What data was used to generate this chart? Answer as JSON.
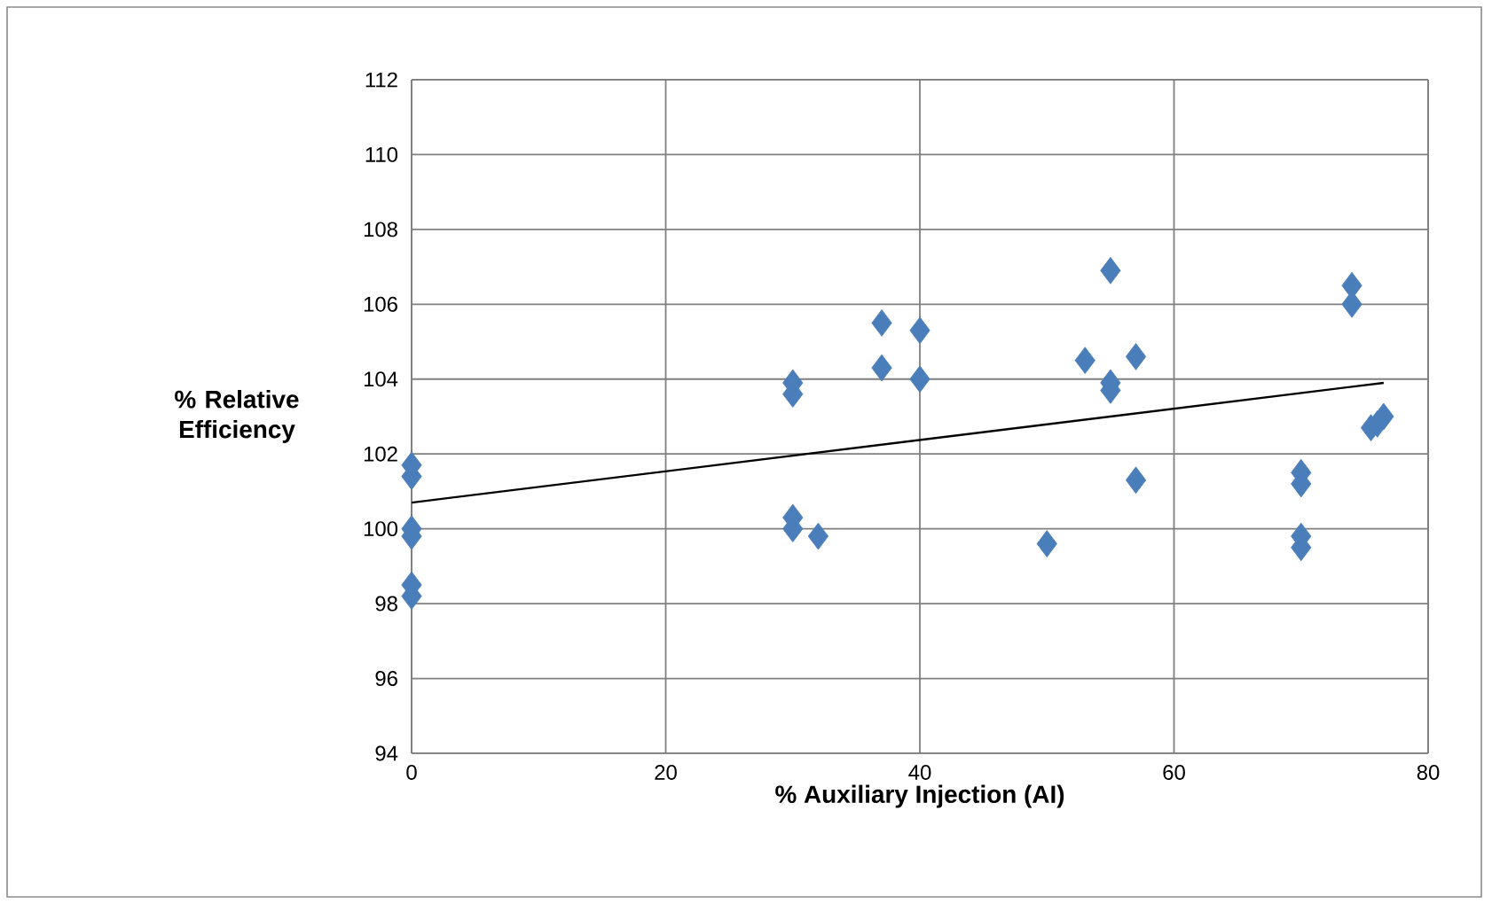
{
  "chart_data": {
    "type": "scatter",
    "xlabel": "% Auxiliary Injection (AI)",
    "ylabel": "% Relative Efficiency",
    "xlim": [
      0,
      80
    ],
    "xticks": [
      0,
      20,
      40,
      60,
      80
    ],
    "ylim": [
      94,
      112
    ],
    "yticks": [
      94,
      96,
      98,
      100,
      102,
      104,
      106,
      108,
      110,
      112
    ],
    "grid": true,
    "series": [
      {
        "color": "#4a7ebb",
        "marker": "diamond",
        "x": [
          0,
          0,
          0,
          0,
          0,
          0,
          30,
          30,
          30,
          30,
          32,
          37,
          37,
          40,
          40,
          50,
          53,
          55,
          55,
          55,
          57,
          57,
          70,
          70,
          70,
          70,
          74,
          74,
          75.5,
          76,
          76.5
        ],
        "values": [
          101.7,
          101.4,
          100.0,
          99.8,
          98.5,
          98.2,
          103.9,
          103.6,
          100.3,
          100.0,
          99.8,
          105.5,
          104.3,
          105.3,
          104.0,
          99.6,
          104.5,
          106.9,
          103.9,
          103.7,
          104.6,
          101.3,
          101.5,
          101.2,
          99.8,
          99.5,
          106.5,
          106.0,
          102.7,
          102.8,
          103.0
        ]
      },
      {
        "type": "line",
        "color": "#000000",
        "marker": "none",
        "x": [
          0,
          76.5
        ],
        "values": [
          100.7,
          103.9
        ]
      }
    ]
  }
}
